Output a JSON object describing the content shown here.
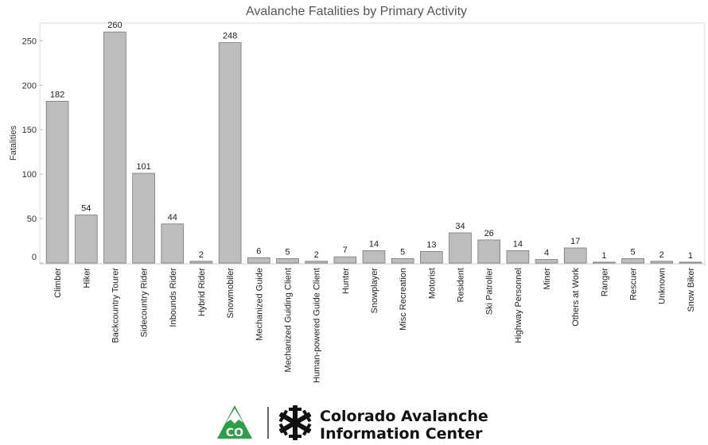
{
  "chart_data": {
    "type": "bar",
    "title": "Avalanche Fatalities by Primary Activity",
    "xlabel": "",
    "ylabel": "Fatalities",
    "ylim": [
      0,
      270
    ],
    "yticks": [
      0,
      50,
      100,
      150,
      200,
      250
    ],
    "grid": false,
    "bar_color": "#bdbdbd",
    "categories": [
      "Climber",
      "Hiker",
      "Backcountry Tourer",
      "Sidecountry Rider",
      "Inbounds Rider",
      "Hybrid Rider",
      "Snowmobiler",
      "Mechanized Guide",
      "Mechanized Guiding Client",
      "Human-powered Guide Client",
      "Hunter",
      "Snowplayer",
      "Misc Recreation",
      "Motorist",
      "Resident",
      "Ski Patroller",
      "Highway Personnel",
      "Miner",
      "Others at Work",
      "Ranger",
      "Rescuer",
      "Unknown",
      "Snow Biker"
    ],
    "values": [
      182,
      54,
      260,
      101,
      44,
      2,
      248,
      6,
      5,
      2,
      7,
      14,
      5,
      13,
      34,
      26,
      14,
      4,
      17,
      1,
      5,
      2,
      1
    ]
  },
  "logo": {
    "badge_text": "CO",
    "line1": "Colorado Avalanche",
    "line2": "Information Center",
    "brand_color": "#2e9e48"
  }
}
